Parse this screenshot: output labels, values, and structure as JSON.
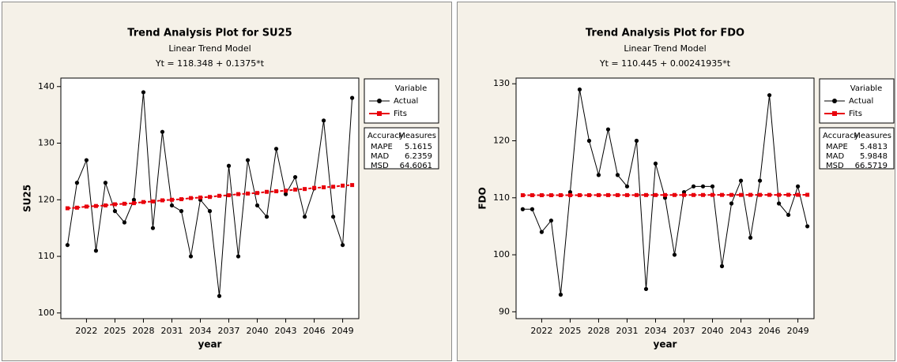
{
  "chart_data": [
    {
      "type": "line",
      "title": "Trend Analysis Plot for SU25",
      "subtitle": "Linear Trend Model",
      "equation": "Yt = 118.348 + 0.1375*t",
      "xlabel": "year",
      "ylabel": "SU25",
      "x": [
        2020,
        2021,
        2022,
        2023,
        2024,
        2025,
        2026,
        2027,
        2028,
        2029,
        2030,
        2031,
        2032,
        2033,
        2034,
        2035,
        2036,
        2037,
        2038,
        2039,
        2040,
        2041,
        2042,
        2043,
        2044,
        2045,
        2046,
        2047,
        2048,
        2049,
        2050
      ],
      "xlim": [
        2019.3,
        2050.7
      ],
      "xticks": [
        2022,
        2025,
        2028,
        2031,
        2034,
        2037,
        2040,
        2043,
        2046,
        2049
      ],
      "ylim": [
        99,
        141.5
      ],
      "yticks": [
        100,
        110,
        120,
        130,
        140
      ],
      "series": [
        {
          "name": "Actual",
          "color": "#000000",
          "values": [
            112,
            123,
            127,
            111,
            123,
            118,
            116,
            120,
            139,
            115,
            132,
            119,
            118,
            110,
            120,
            118,
            103,
            126,
            110,
            127,
            119,
            117,
            129,
            121,
            124,
            117,
            122,
            134,
            117,
            112,
            138
          ]
        },
        {
          "name": "Fits",
          "color": "#e8000b",
          "values": [
            118.5,
            118.6,
            118.8,
            118.9,
            119.0,
            119.2,
            119.3,
            119.4,
            119.6,
            119.7,
            119.9,
            120.0,
            120.1,
            120.3,
            120.4,
            120.5,
            120.7,
            120.8,
            121.0,
            121.1,
            121.2,
            121.4,
            121.5,
            121.6,
            121.8,
            121.9,
            122.1,
            122.2,
            122.3,
            122.5,
            122.6
          ]
        }
      ],
      "legend_title": "Variable",
      "accuracy_header": [
        "Accuracy",
        "Measures"
      ],
      "accuracy_measures": [
        {
          "name": "MAPE",
          "value": 5.1615
        },
        {
          "name": "MAD",
          "value": 6.2359
        },
        {
          "name": "MSD",
          "value": 64.6061
        }
      ]
    },
    {
      "type": "line",
      "title": "Trend Analysis Plot for FDO",
      "subtitle": "Linear Trend Model",
      "equation": "Yt = 110.445 + 0.00241935*t",
      "xlabel": "year",
      "ylabel": "FDO",
      "x": [
        2020,
        2021,
        2022,
        2023,
        2024,
        2025,
        2026,
        2027,
        2028,
        2029,
        2030,
        2031,
        2032,
        2033,
        2034,
        2035,
        2036,
        2037,
        2038,
        2039,
        2040,
        2041,
        2042,
        2043,
        2044,
        2045,
        2046,
        2047,
        2048,
        2049,
        2050
      ],
      "xlim": [
        2019.3,
        2050.7
      ],
      "xticks": [
        2022,
        2025,
        2028,
        2031,
        2034,
        2037,
        2040,
        2043,
        2046,
        2049
      ],
      "ylim": [
        88.8,
        131
      ],
      "yticks": [
        90,
        100,
        110,
        120,
        130
      ],
      "series": [
        {
          "name": "Actual",
          "color": "#000000",
          "values": [
            108,
            108,
            104,
            106,
            93,
            111,
            129,
            120,
            114,
            122,
            114,
            112,
            120,
            94,
            116,
            110,
            100,
            111,
            112,
            112,
            112,
            98,
            109,
            113,
            103,
            113,
            128,
            109,
            107,
            112,
            105
          ]
        },
        {
          "name": "Fits",
          "color": "#e8000b",
          "values": [
            110.45,
            110.45,
            110.45,
            110.45,
            110.46,
            110.46,
            110.46,
            110.46,
            110.47,
            110.47,
            110.47,
            110.47,
            110.48,
            110.48,
            110.48,
            110.48,
            110.49,
            110.49,
            110.49,
            110.49,
            110.5,
            110.5,
            110.5,
            110.5,
            110.51,
            110.51,
            110.51,
            110.51,
            110.52,
            110.52,
            110.52
          ]
        }
      ],
      "legend_title": "Variable",
      "accuracy_header": [
        "Accuracy",
        "Measures"
      ],
      "accuracy_measures": [
        {
          "name": "MAPE",
          "value": 5.4813
        },
        {
          "name": "MAD",
          "value": 5.9848
        },
        {
          "name": "MSD",
          "value": 66.5719
        }
      ]
    }
  ]
}
